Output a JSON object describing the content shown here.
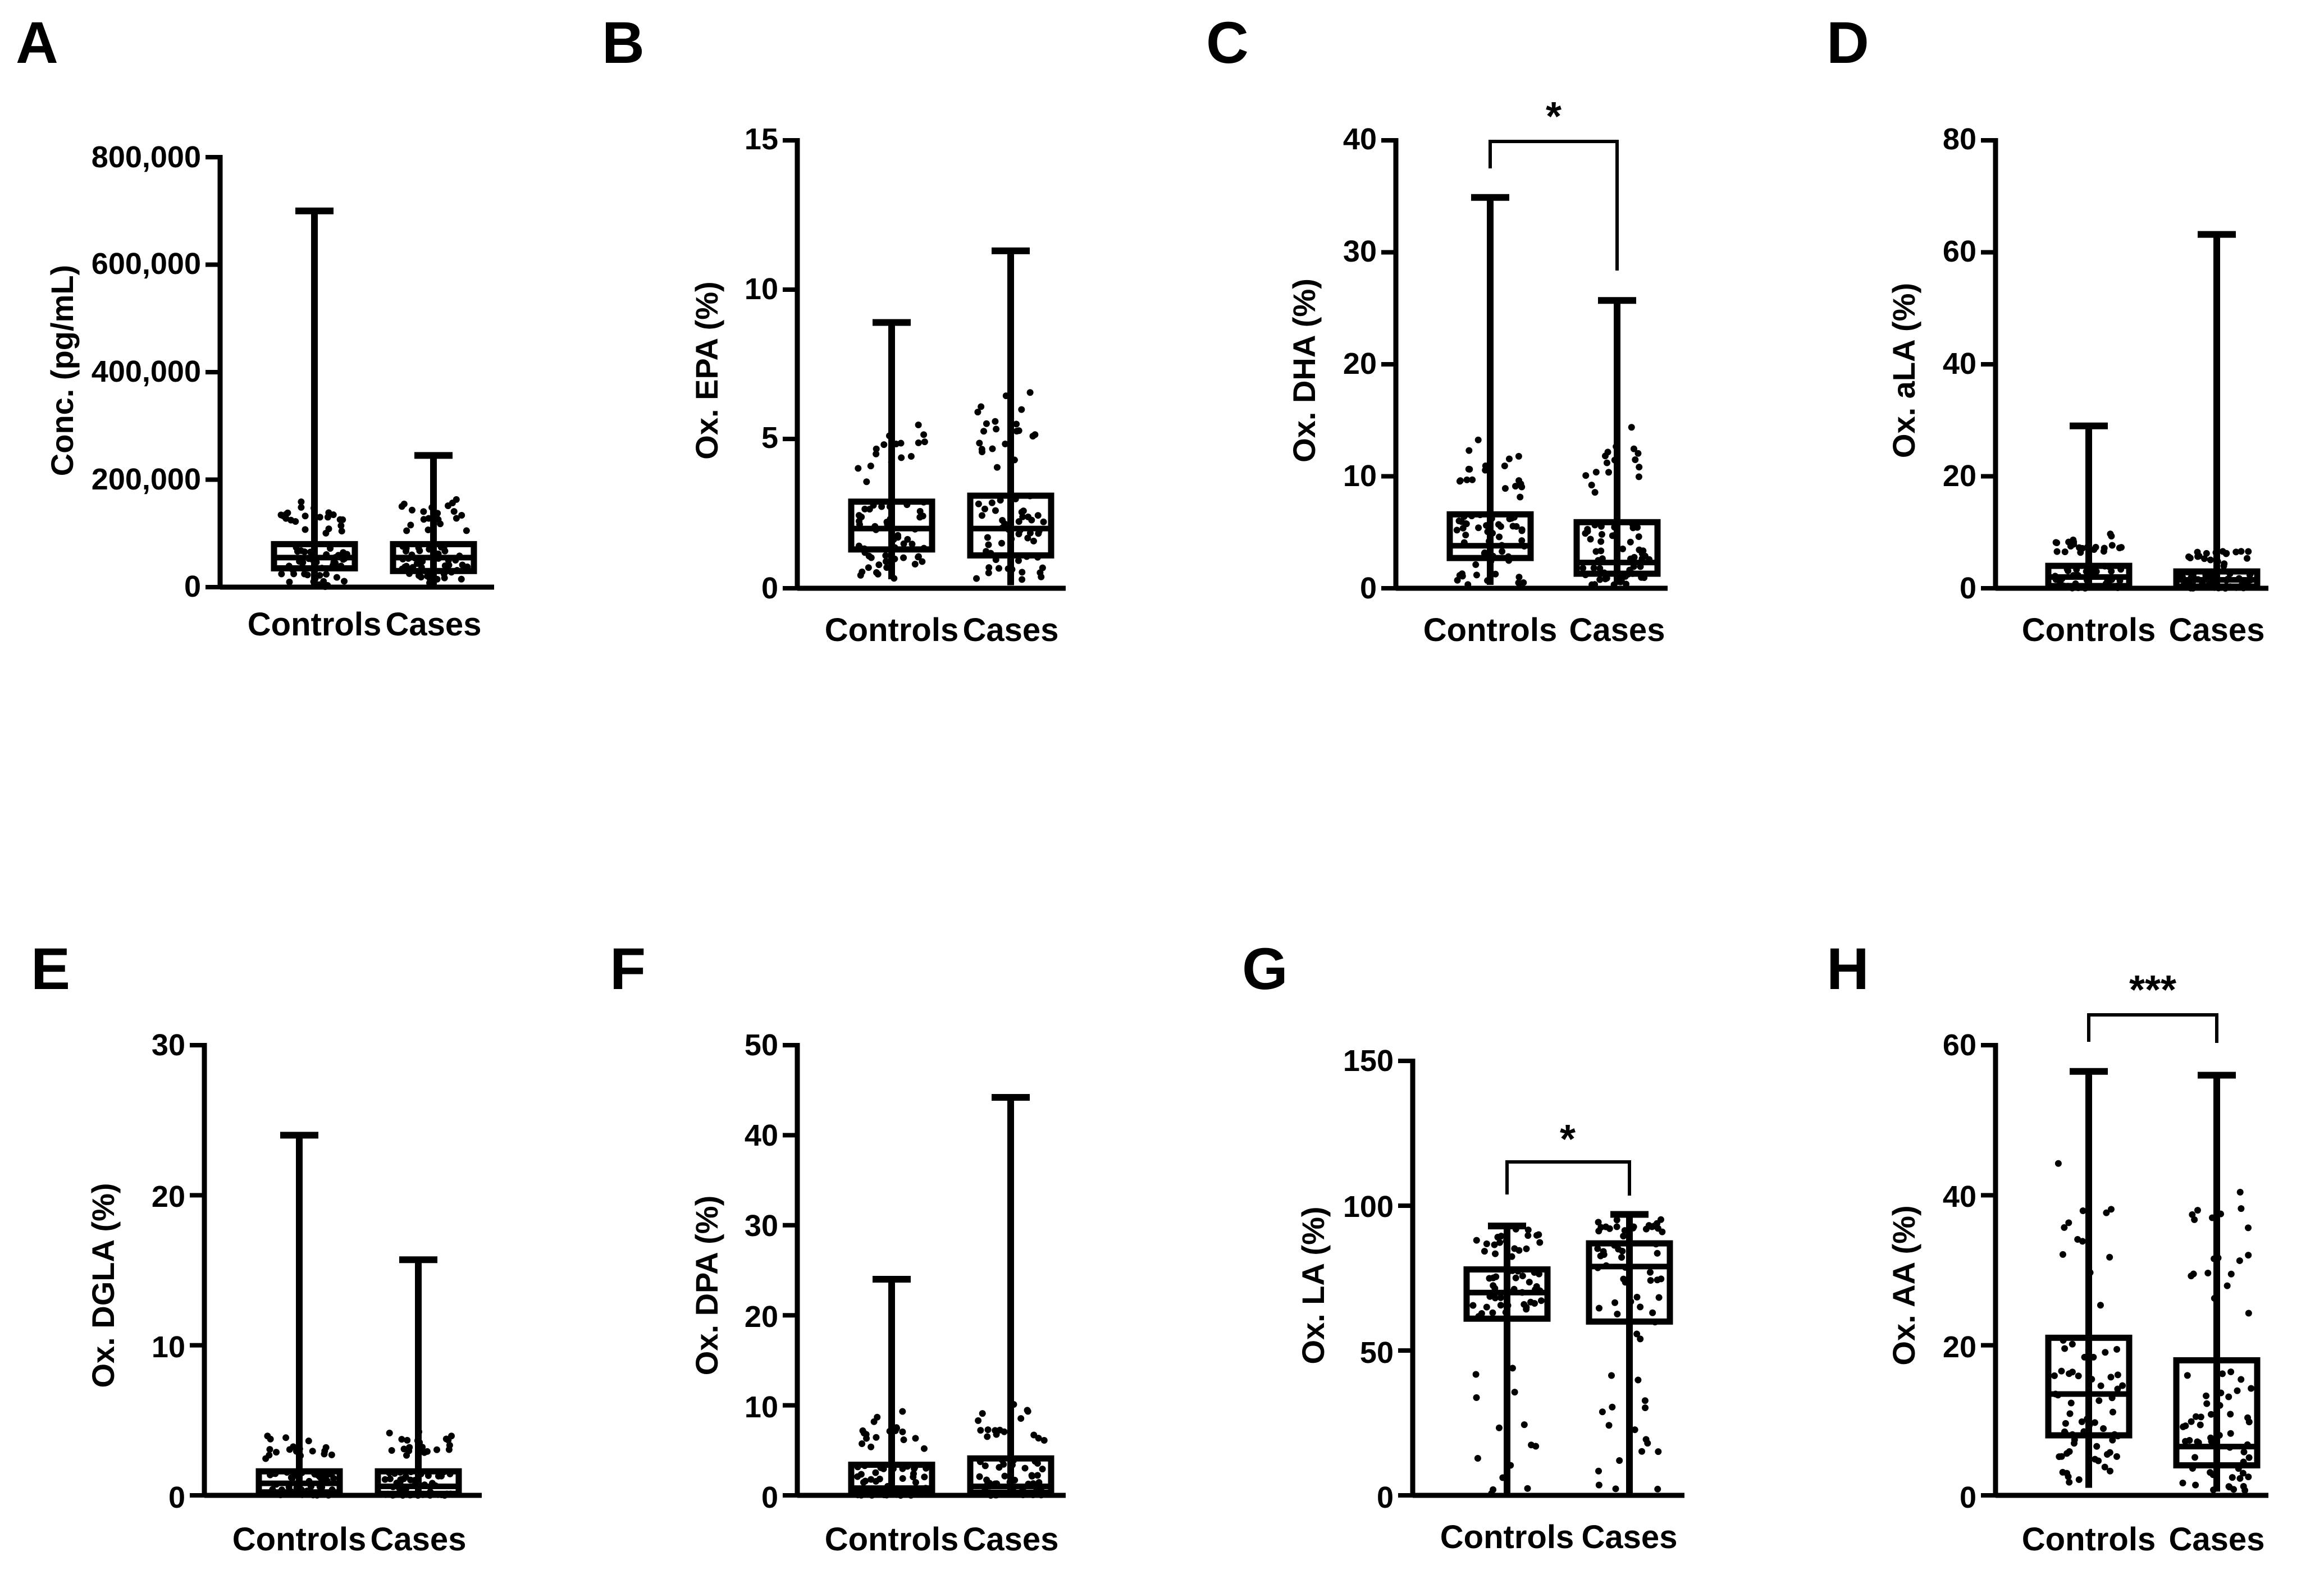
{
  "figure": {
    "panels": [
      {
        "letter": "A",
        "ylabel": "Conc. (pg/mL)",
        "ticks": [
          "800,000",
          "600,000",
          "400,000",
          "200,000",
          "0"
        ],
        "xlabels": [
          "Controls",
          "Cases"
        ],
        "significance": ""
      },
      {
        "letter": "B",
        "ylabel": "Ox. EPA (%)",
        "ticks": [
          "15",
          "10",
          "5",
          "0"
        ],
        "xlabels": [
          "Controls",
          "Cases"
        ],
        "significance": ""
      },
      {
        "letter": "C",
        "ylabel": "Ox. DHA (%)",
        "ticks": [
          "40",
          "30",
          "20",
          "10",
          "0"
        ],
        "xlabels": [
          "Controls",
          "Cases"
        ],
        "significance": "*"
      },
      {
        "letter": "D",
        "ylabel": "Ox. aLA (%)",
        "ticks": [
          "80",
          "60",
          "40",
          "20",
          "0"
        ],
        "xlabels": [
          "Controls",
          "Cases"
        ],
        "significance": ""
      },
      {
        "letter": "E",
        "ylabel": "Ox. DGLA (%)",
        "ticks": [
          "30",
          "20",
          "10",
          "0"
        ],
        "xlabels": [
          "Controls",
          "Cases"
        ],
        "significance": ""
      },
      {
        "letter": "F",
        "ylabel": "Ox. DPA (%)",
        "ticks": [
          "50",
          "40",
          "30",
          "20",
          "10",
          "0"
        ],
        "xlabels": [
          "Controls",
          "Cases"
        ],
        "significance": ""
      },
      {
        "letter": "G",
        "ylabel": "Ox. LA (%)",
        "ticks": [
          "150",
          "100",
          "50",
          "0"
        ],
        "xlabels": [
          "Controls",
          "Cases"
        ],
        "significance": "*"
      },
      {
        "letter": "H",
        "ylabel": "Ox. AA (%)",
        "ticks": [
          "60",
          "40",
          "20",
          "0"
        ],
        "xlabels": [
          "Controls",
          "Cases"
        ],
        "significance": "***"
      }
    ]
  },
  "chart_data": [
    {
      "type": "box",
      "panel": "A",
      "ylabel": "Conc. (pg/mL)",
      "categories": [
        "Controls",
        "Cases"
      ],
      "ylim": [
        0,
        800000
      ],
      "boxes": [
        {
          "name": "Controls",
          "min": 0,
          "q1": 35000,
          "median": 55000,
          "q3": 80000,
          "max": 700000
        },
        {
          "name": "Cases",
          "min": 0,
          "q1": 30000,
          "median": 55000,
          "q3": 80000,
          "max": 245000
        }
      ],
      "significance": ""
    },
    {
      "type": "box",
      "panel": "B",
      "ylabel": "Ox. EPA (%)",
      "categories": [
        "Controls",
        "Cases"
      ],
      "ylim": [
        0,
        15
      ],
      "boxes": [
        {
          "name": "Controls",
          "min": 0.3,
          "q1": 1.3,
          "median": 2.0,
          "q3": 2.9,
          "max": 8.9
        },
        {
          "name": "Cases",
          "min": 0.1,
          "q1": 1.1,
          "median": 2.0,
          "q3": 3.1,
          "max": 11.3
        }
      ],
      "significance": ""
    },
    {
      "type": "box",
      "panel": "C",
      "ylabel": "Ox. DHA (%)",
      "categories": [
        "Controls",
        "Cases"
      ],
      "ylim": [
        0,
        40
      ],
      "boxes": [
        {
          "name": "Controls",
          "min": 0.3,
          "q1": 2.7,
          "median": 3.8,
          "q3": 6.6,
          "max": 34.9
        },
        {
          "name": "Cases",
          "min": 0.3,
          "q1": 1.3,
          "median": 2.3,
          "q3": 5.9,
          "max": 25.7
        }
      ],
      "significance": "*"
    },
    {
      "type": "box",
      "panel": "D",
      "ylabel": "Ox. aLA (%)",
      "categories": [
        "Controls",
        "Cases"
      ],
      "ylim": [
        0,
        80
      ],
      "boxes": [
        {
          "name": "Controls",
          "min": 0,
          "q1": 0.4,
          "median": 2.0,
          "q3": 4.0,
          "max": 29
        },
        {
          "name": "Cases",
          "min": 0,
          "q1": 0.3,
          "median": 1.5,
          "q3": 3.0,
          "max": 63.2
        }
      ],
      "significance": ""
    },
    {
      "type": "box",
      "panel": "E",
      "ylabel": "Ox. DGLA (%)",
      "categories": [
        "Controls",
        "Cases"
      ],
      "ylim": [
        0,
        30
      ],
      "boxes": [
        {
          "name": "Controls",
          "min": 0,
          "q1": 0.2,
          "median": 0.8,
          "q3": 1.6,
          "max": 24
        },
        {
          "name": "Cases",
          "min": 0,
          "q1": 0.1,
          "median": 0.6,
          "q3": 1.6,
          "max": 15.7
        }
      ],
      "significance": ""
    },
    {
      "type": "box",
      "panel": "F",
      "ylabel": "Ox. DPA (%)",
      "categories": [
        "Controls",
        "Cases"
      ],
      "ylim": [
        0,
        50
      ],
      "boxes": [
        {
          "name": "Controls",
          "min": 0,
          "q1": 0.2,
          "median": 0.8,
          "q3": 3.4,
          "max": 24
        },
        {
          "name": "Cases",
          "min": 0,
          "q1": 0.3,
          "median": 1.0,
          "q3": 4.1,
          "max": 44.2
        }
      ],
      "significance": ""
    },
    {
      "type": "box",
      "panel": "G",
      "ylabel": "Ox. LA (%)",
      "categories": [
        "Controls",
        "Cases"
      ],
      "ylim": [
        0,
        150
      ],
      "boxes": [
        {
          "name": "Controls",
          "min": 0.5,
          "q1": 61,
          "median": 70,
          "q3": 78,
          "max": 93
        },
        {
          "name": "Cases",
          "min": 0.5,
          "q1": 60,
          "median": 79,
          "q3": 87,
          "max": 97
        }
      ],
      "significance": "*"
    },
    {
      "type": "box",
      "panel": "H",
      "ylabel": "Ox. AA (%)",
      "categories": [
        "Controls",
        "Cases"
      ],
      "ylim": [
        0,
        60
      ],
      "boxes": [
        {
          "name": "Controls",
          "min": 1,
          "q1": 8,
          "median": 13.5,
          "q3": 21,
          "max": 56.5
        },
        {
          "name": "Cases",
          "min": 0.5,
          "q1": 4,
          "median": 6.5,
          "q3": 18,
          "max": 56
        }
      ],
      "significance": "***"
    }
  ]
}
